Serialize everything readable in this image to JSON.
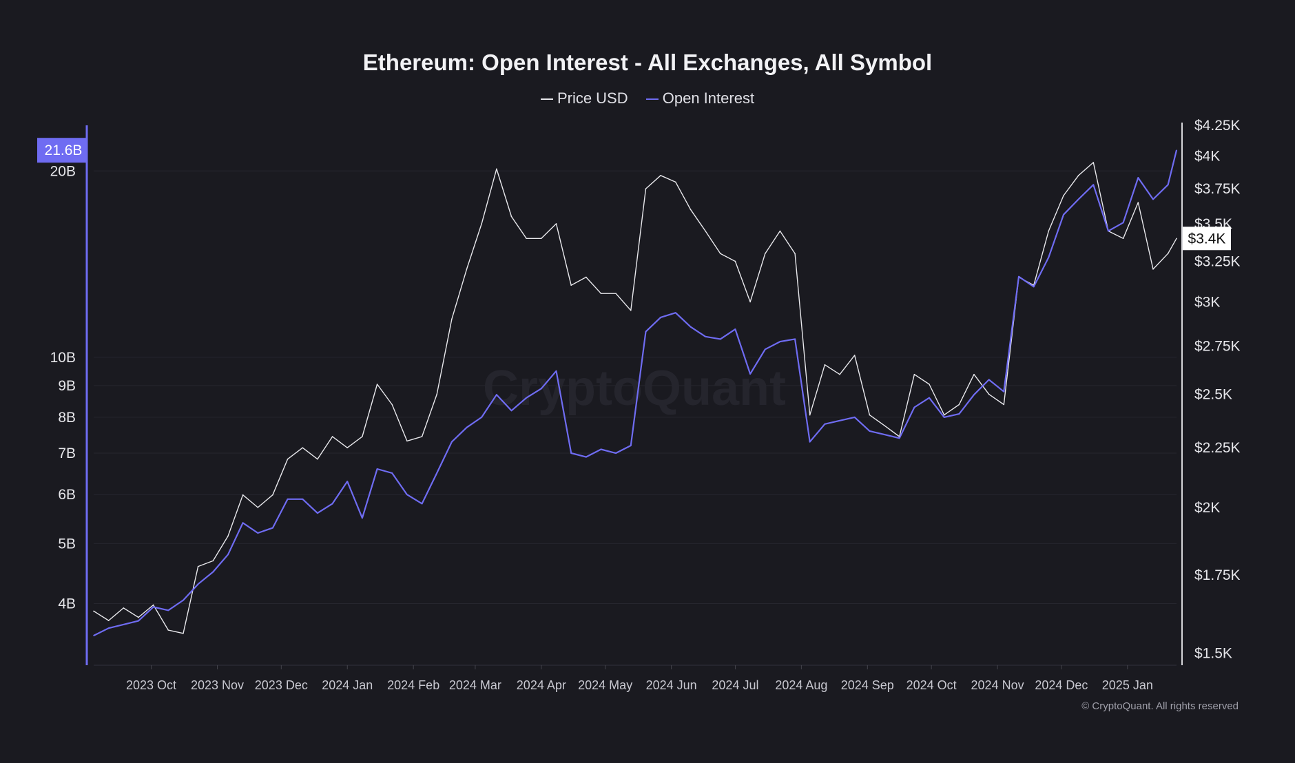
{
  "colors": {
    "background": "#1a1a20",
    "price": "#e8e8ec",
    "open_interest": "#6f6cf2",
    "grid": "#26262e"
  },
  "footer": "© CryptoQuant. All rights reserved",
  "watermark": "CryptoQuant",
  "chart_data": {
    "type": "line",
    "title": "Ethereum: Open Interest - All Exchanges, All Symbol",
    "legend_position": "top-center",
    "grid": true,
    "x_ticks": [
      "2023 Oct",
      "2023 Nov",
      "2023 Dec",
      "2024 Jan",
      "2024 Feb",
      "2024 Mar",
      "2024 Apr",
      "2024 May",
      "2024 Jun",
      "2024 Jul",
      "2024 Aug",
      "2024 Sep",
      "2024 Oct",
      "2024 Nov",
      "2024 Dec",
      "2025 Jan"
    ],
    "x_tick_dates": [
      "2023-10-01",
      "2023-11-01",
      "2023-12-01",
      "2024-01-01",
      "2024-02-01",
      "2024-03-01",
      "2024-04-01",
      "2024-05-01",
      "2024-06-01",
      "2024-07-01",
      "2024-08-01",
      "2024-09-01",
      "2024-10-01",
      "2024-11-01",
      "2024-12-01",
      "2025-01-01"
    ],
    "xlim": [
      "2023-09-04",
      "2025-01-24"
    ],
    "left_axis": {
      "scale": "log",
      "unit": "USD (B)",
      "ylim": [
        3.18,
        23.7
      ],
      "ticks": [
        4,
        5,
        6,
        7,
        8,
        9,
        10,
        20
      ],
      "tick_labels": [
        "4B",
        "5B",
        "6B",
        "7B",
        "8B",
        "9B",
        "10B",
        "20B"
      ],
      "current_value_label": "21.6B",
      "current_value": 21.6
    },
    "right_axis": {
      "scale": "log",
      "unit": "USD",
      "ylim": [
        1465,
        4250
      ],
      "ticks": [
        1500,
        1750,
        2000,
        2250,
        2500,
        2750,
        3000,
        3250,
        3500,
        3750,
        4000,
        4250
      ],
      "tick_labels": [
        "$1.5K",
        "$1.75K",
        "$2K",
        "$2.25K",
        "$2.5K",
        "$2.75K",
        "$3K",
        "$3.25K",
        "$3.5K",
        "$3.75K",
        "$4K",
        "$4.25K"
      ],
      "current_value_label": "$3.4K",
      "current_value": 3400
    },
    "x": [
      "2023-09-04",
      "2023-09-11",
      "2023-09-18",
      "2023-09-25",
      "2023-10-02",
      "2023-10-09",
      "2023-10-16",
      "2023-10-23",
      "2023-10-30",
      "2023-11-06",
      "2023-11-13",
      "2023-11-20",
      "2023-11-27",
      "2023-12-04",
      "2023-12-11",
      "2023-12-18",
      "2023-12-25",
      "2024-01-01",
      "2024-01-08",
      "2024-01-15",
      "2024-01-22",
      "2024-01-29",
      "2024-02-05",
      "2024-02-12",
      "2024-02-19",
      "2024-02-26",
      "2024-03-04",
      "2024-03-11",
      "2024-03-18",
      "2024-03-25",
      "2024-04-01",
      "2024-04-08",
      "2024-04-15",
      "2024-04-22",
      "2024-04-29",
      "2024-05-06",
      "2024-05-13",
      "2024-05-20",
      "2024-05-27",
      "2024-06-03",
      "2024-06-10",
      "2024-06-17",
      "2024-06-24",
      "2024-07-01",
      "2024-07-08",
      "2024-07-15",
      "2024-07-22",
      "2024-07-29",
      "2024-08-05",
      "2024-08-12",
      "2024-08-19",
      "2024-08-26",
      "2024-09-02",
      "2024-09-09",
      "2024-09-16",
      "2024-09-23",
      "2024-09-30",
      "2024-10-07",
      "2024-10-14",
      "2024-10-21",
      "2024-10-28",
      "2024-11-04",
      "2024-11-11",
      "2024-11-18",
      "2024-11-25",
      "2024-12-02",
      "2024-12-09",
      "2024-12-16",
      "2024-12-23",
      "2024-12-30",
      "2025-01-06",
      "2025-01-13",
      "2025-01-20",
      "2025-01-24"
    ],
    "series": [
      {
        "name": "Price USD",
        "axis": "right",
        "values": [
          1630,
          1600,
          1640,
          1610,
          1650,
          1570,
          1560,
          1780,
          1800,
          1890,
          2050,
          2000,
          2050,
          2200,
          2250,
          2200,
          2300,
          2250,
          2300,
          2550,
          2450,
          2280,
          2300,
          2500,
          2900,
          3200,
          3500,
          3900,
          3550,
          3400,
          3400,
          3500,
          3100,
          3150,
          3050,
          3050,
          2950,
          3750,
          3850,
          3800,
          3600,
          3450,
          3300,
          3250,
          3000,
          3300,
          3450,
          3300,
          2400,
          2650,
          2600,
          2700,
          2400,
          2350,
          2300,
          2600,
          2550,
          2400,
          2450,
          2600,
          2500,
          2450,
          3150,
          3100,
          3450,
          3700,
          3850,
          3950,
          3450,
          3400,
          3650,
          3200,
          3300,
          3400
        ]
      },
      {
        "name": "Open Interest",
        "axis": "left",
        "values": [
          3.55,
          3.65,
          3.7,
          3.75,
          3.95,
          3.9,
          4.05,
          4.3,
          4.5,
          4.8,
          5.4,
          5.2,
          5.3,
          5.9,
          5.9,
          5.6,
          5.8,
          6.3,
          5.5,
          6.6,
          6.5,
          6.0,
          5.8,
          6.5,
          7.3,
          7.7,
          8.0,
          8.7,
          8.2,
          8.6,
          8.9,
          9.5,
          7.0,
          6.9,
          7.1,
          7.0,
          7.2,
          11.0,
          11.6,
          11.8,
          11.2,
          10.8,
          10.7,
          11.1,
          9.4,
          10.3,
          10.6,
          10.7,
          7.3,
          7.8,
          7.9,
          8.0,
          7.6,
          7.5,
          7.4,
          8.3,
          8.6,
          8.0,
          8.1,
          8.7,
          9.2,
          8.8,
          13.5,
          13.0,
          14.5,
          17.0,
          18.0,
          19.0,
          16.0,
          16.5,
          19.5,
          18.0,
          19.0,
          21.6
        ]
      }
    ]
  }
}
